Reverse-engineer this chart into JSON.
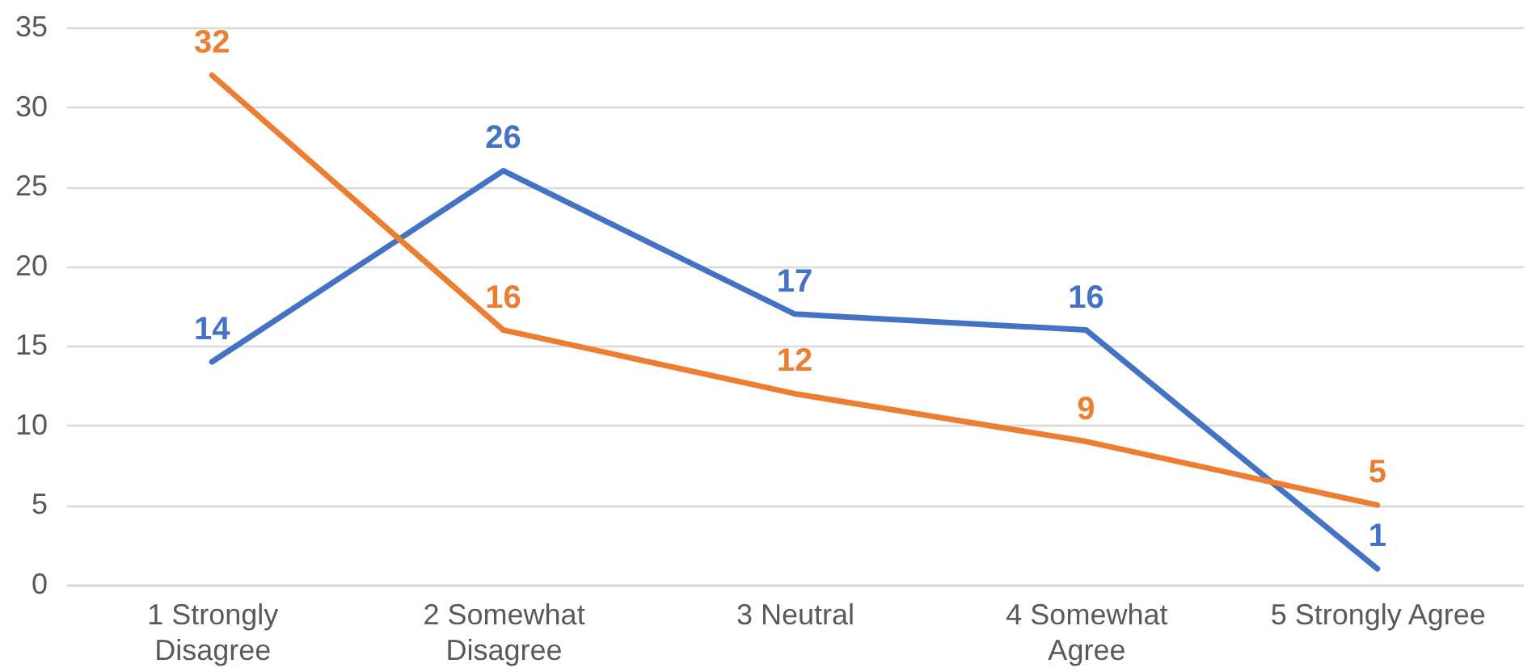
{
  "chart_data": {
    "type": "line",
    "categories": [
      "1 Strongly Disagree",
      "2 Somewhat Disagree",
      "3 Neutral",
      "4 Somewhat Agree",
      "5 Strongly Agree"
    ],
    "series": [
      {
        "color": "#4472c4",
        "values": [
          14,
          26,
          17,
          16,
          1
        ]
      },
      {
        "color": "#ed7d31",
        "values": [
          32,
          16,
          12,
          9,
          5
        ]
      }
    ],
    "ylim": [
      0,
      35
    ],
    "yticks": [
      0,
      5,
      10,
      15,
      20,
      25,
      30,
      35
    ],
    "grid": "y",
    "data_labels": true,
    "marker": "none",
    "line_style": "solid",
    "legend": false
  }
}
